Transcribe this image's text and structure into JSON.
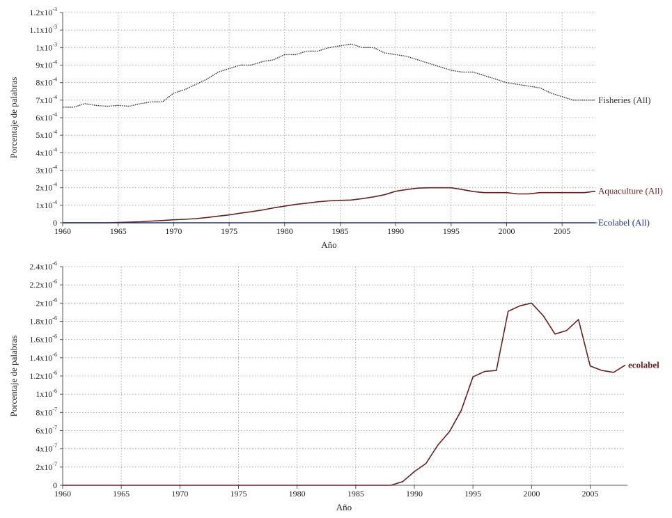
{
  "chart_data": [
    {
      "type": "line",
      "xlabel": "Año",
      "ylabel": "Porcentaje de palabras",
      "xlim": [
        1960,
        2008
      ],
      "ylim": [
        0,
        0.0012
      ],
      "x_ticks": [
        1960,
        1965,
        1970,
        1975,
        1980,
        1985,
        1990,
        1995,
        2000,
        2005
      ],
      "x_tick_labels": [
        "1960",
        "1965",
        "1970",
        "1975",
        "1980",
        "1985",
        "1990",
        "1995",
        "2000",
        "2005"
      ],
      "y_ticks": [
        0,
        0.0001,
        0.0002,
        0.0003,
        0.0004,
        0.0005,
        0.0006,
        0.0007,
        0.0008,
        0.0009,
        0.001,
        0.0011,
        0.0012
      ],
      "y_tick_mantissas": [
        "0",
        "1x10",
        "2x10",
        "3x10",
        "4x10",
        "5x10",
        "6x10",
        "7x10",
        "8x10",
        "9x10",
        "1x10",
        "1.1x10",
        "1.2x10"
      ],
      "y_tick_exponents": [
        "",
        "-4",
        "-4",
        "-4",
        "-4",
        "-4",
        "-4",
        "-4",
        "-4",
        "-4",
        "-3",
        "-3",
        "-3"
      ],
      "grid": true,
      "x": [
        1960,
        1961,
        1962,
        1963,
        1964,
        1965,
        1966,
        1967,
        1968,
        1969,
        1970,
        1971,
        1972,
        1973,
        1974,
        1975,
        1976,
        1977,
        1978,
        1979,
        1980,
        1981,
        1982,
        1983,
        1984,
        1985,
        1986,
        1987,
        1988,
        1989,
        1990,
        1991,
        1992,
        1993,
        1994,
        1995,
        1996,
        1997,
        1998,
        1999,
        2000,
        2001,
        2002,
        2003,
        2004,
        2005,
        2006,
        2007,
        2008
      ],
      "series": [
        {
          "name": "Fisheries (All)",
          "color": "#333333",
          "dotted": true,
          "values": [
            0.00066,
            0.00066,
            0.00068,
            0.00067,
            0.000665,
            0.00067,
            0.000665,
            0.00068,
            0.00069,
            0.00069,
            0.00074,
            0.00076,
            0.00079,
            0.00082,
            0.00086,
            0.00088,
            0.0009,
            0.0009,
            0.00092,
            0.00093,
            0.00096,
            0.00096,
            0.00098,
            0.00098,
            0.001,
            0.00101,
            0.00102,
            0.001,
            0.001,
            0.00097,
            0.00096,
            0.00095,
            0.00093,
            0.00091,
            0.00089,
            0.00087,
            0.00086,
            0.00086,
            0.00084,
            0.00082,
            0.0008,
            0.00079,
            0.00078,
            0.00077,
            0.00074,
            0.00072,
            0.0007,
            0.0007,
            0.0007
          ]
        },
        {
          "name": "Aquaculture (All)",
          "color": "#6b1f1f",
          "dotted": false,
          "values": [
            0,
            0,
            0,
            0,
            0,
            2e-06,
            4e-06,
            6e-06,
            1e-05,
            1.3e-05,
            1.7e-05,
            2e-05,
            2.4e-05,
            3e-05,
            3.8e-05,
            4.5e-05,
            5.5e-05,
            6.3e-05,
            7.3e-05,
            8.5e-05,
            9.5e-05,
            0.000105,
            0.000112,
            0.00012,
            0.000125,
            0.000128,
            0.00013,
            0.000138,
            0.000148,
            0.00016,
            0.00018,
            0.00019,
            0.000198,
            0.0002,
            0.0002,
            0.0002,
            0.00019,
            0.000178,
            0.000172,
            0.000172,
            0.000172,
            0.000165,
            0.000165,
            0.000172,
            0.000172,
            0.000172,
            0.000172,
            0.000172,
            0.00018
          ]
        },
        {
          "name": "Ecolabel (All)",
          "color": "#1f2f8f",
          "dotted": false,
          "values": [
            0,
            0,
            0,
            0,
            0,
            0,
            0,
            0,
            0,
            0,
            0,
            0,
            0,
            0,
            0,
            0,
            0,
            0,
            0,
            0,
            0,
            0,
            0,
            0,
            0,
            0,
            0,
            0,
            0,
            0,
            0,
            0,
            0,
            0,
            0,
            0,
            0,
            0,
            0,
            0,
            0,
            0,
            0,
            0,
            0,
            0,
            0,
            0,
            0
          ]
        }
      ]
    },
    {
      "type": "line",
      "xlabel": "Año",
      "ylabel": "Porcentaje de palabras",
      "xlim": [
        1960,
        2008
      ],
      "ylim": [
        0,
        2.4e-06
      ],
      "x_ticks": [
        1960,
        1965,
        1970,
        1975,
        1980,
        1985,
        1990,
        1995,
        2000,
        2005
      ],
      "x_tick_labels": [
        "1960",
        "1965",
        "1970",
        "1975",
        "1980",
        "1985",
        "1990",
        "1995",
        "2000",
        "2005"
      ],
      "y_ticks": [
        0,
        2e-07,
        4e-07,
        6e-07,
        8e-07,
        1e-06,
        1.2e-06,
        1.4e-06,
        1.6e-06,
        1.8e-06,
        2e-06,
        2.2e-06,
        2.4e-06
      ],
      "y_tick_mantissas": [
        "0",
        "2x10",
        "4x10",
        "6x10",
        "8x10",
        "1x10",
        "1.2x10",
        "1.4x10",
        "1.6x10",
        "1.8x10",
        "2x10",
        "2.2x10",
        "2.4x10"
      ],
      "y_tick_exponents": [
        "",
        "-7",
        "-7",
        "-7",
        "-7",
        "-6",
        "-6",
        "-6",
        "-6",
        "-6",
        "-6",
        "-6",
        "-6"
      ],
      "grid": true,
      "x": [
        1960,
        1961,
        1962,
        1963,
        1964,
        1965,
        1966,
        1967,
        1968,
        1969,
        1970,
        1971,
        1972,
        1973,
        1974,
        1975,
        1976,
        1977,
        1978,
        1979,
        1980,
        1981,
        1982,
        1983,
        1984,
        1985,
        1986,
        1987,
        1988,
        1989,
        1990,
        1991,
        1992,
        1993,
        1994,
        1995,
        1996,
        1997,
        1998,
        1999,
        2000,
        2001,
        2002,
        2003,
        2004,
        2005,
        2006,
        2007,
        2008
      ],
      "series": [
        {
          "name": "ecolabel",
          "color": "#6b1f1f",
          "dotted": false,
          "values": [
            0,
            0,
            0,
            0,
            0,
            0,
            0,
            0,
            0,
            0,
            0,
            0,
            0,
            0,
            0,
            0,
            0,
            0,
            0,
            0,
            0,
            0,
            0,
            0,
            0,
            0,
            0,
            0,
            0,
            4e-08,
            1.5e-07,
            2.4e-07,
            4.4e-07,
            5.9e-07,
            8.2e-07,
            1.19e-06,
            1.25e-06,
            1.26e-06,
            1.91e-06,
            1.97e-06,
            2e-06,
            1.86e-06,
            1.66e-06,
            1.7e-06,
            1.82e-06,
            1.31e-06,
            1.26e-06,
            1.24e-06,
            1.32e-06
          ]
        }
      ]
    }
  ]
}
